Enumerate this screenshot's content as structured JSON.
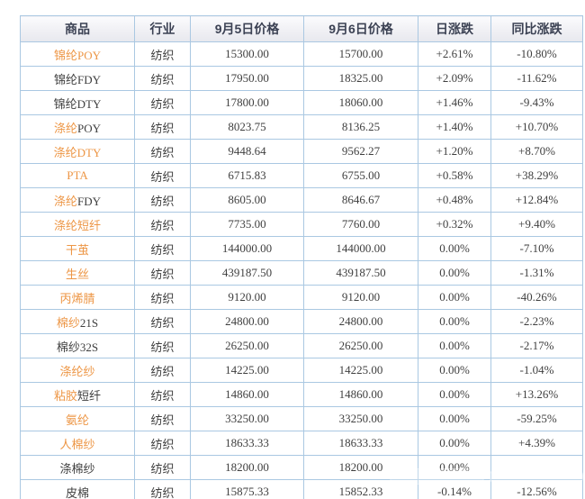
{
  "colors": {
    "border": "#aac8e2",
    "header_text": "#3c4254",
    "commodity_link_orange": "#ed9645",
    "text_dark": "#3f3f3f",
    "change_up_red": "#d23440",
    "change_down_green": "#21a121",
    "header_background": "#f0f0f4",
    "row_background": "#ffffff"
  },
  "table": {
    "columns": [
      {
        "key": "name",
        "label": "商品"
      },
      {
        "key": "industry",
        "label": "行业"
      },
      {
        "key": "price_sep5",
        "label": "9月5日价格"
      },
      {
        "key": "price_sep6",
        "label": "9月6日价格"
      },
      {
        "key": "daily_change",
        "label": "日涨跌"
      },
      {
        "key": "yoy_change",
        "label": "同比涨跌"
      }
    ],
    "rows": [
      {
        "name": [
          {
            "t": "锦纶POY",
            "c": "orange"
          }
        ],
        "industry": "纺织",
        "p5": "15300.00",
        "p6": "15700.00",
        "daily": {
          "t": "+2.61%",
          "c": "red"
        },
        "yoy": {
          "t": "-10.80%",
          "c": "green"
        }
      },
      {
        "name": [
          {
            "t": "锦纶FDY",
            "c": "dark"
          }
        ],
        "industry": "纺织",
        "p5": "17950.00",
        "p6": "18325.00",
        "daily": {
          "t": "+2.09%",
          "c": "red"
        },
        "yoy": {
          "t": "-11.62%",
          "c": "green"
        }
      },
      {
        "name": [
          {
            "t": "锦纶DTY",
            "c": "dark"
          }
        ],
        "industry": "纺织",
        "p5": "17800.00",
        "p6": "18060.00",
        "daily": {
          "t": "+1.46%",
          "c": "red"
        },
        "yoy": {
          "t": "-9.43%",
          "c": "green"
        }
      },
      {
        "name": [
          {
            "t": "涤纶",
            "c": "orange"
          },
          {
            "t": "POY",
            "c": "dark"
          }
        ],
        "industry": "纺织",
        "p5": "8023.75",
        "p6": "8136.25",
        "daily": {
          "t": "+1.40%",
          "c": "red"
        },
        "yoy": {
          "t": "+10.70%",
          "c": "red"
        }
      },
      {
        "name": [
          {
            "t": "涤纶DTY",
            "c": "orange"
          }
        ],
        "industry": "纺织",
        "p5": "9448.64",
        "p6": "9562.27",
        "daily": {
          "t": "+1.20%",
          "c": "red"
        },
        "yoy": {
          "t": "+8.70%",
          "c": "red"
        }
      },
      {
        "name": [
          {
            "t": "PTA",
            "c": "orange"
          }
        ],
        "industry": "纺织",
        "p5": "6715.83",
        "p6": "6755.00",
        "daily": {
          "t": "+0.58%",
          "c": "red"
        },
        "yoy": {
          "t": "+38.29%",
          "c": "red"
        }
      },
      {
        "name": [
          {
            "t": "涤纶",
            "c": "orange"
          },
          {
            "t": "FDY",
            "c": "dark"
          }
        ],
        "industry": "纺织",
        "p5": "8605.00",
        "p6": "8646.67",
        "daily": {
          "t": "+0.48%",
          "c": "red"
        },
        "yoy": {
          "t": "+12.84%",
          "c": "red"
        }
      },
      {
        "name": [
          {
            "t": "涤纶短纤",
            "c": "orange"
          }
        ],
        "industry": "纺织",
        "p5": "7735.00",
        "p6": "7760.00",
        "daily": {
          "t": "+0.32%",
          "c": "red"
        },
        "yoy": {
          "t": "+9.40%",
          "c": "red"
        }
      },
      {
        "name": [
          {
            "t": "干茧",
            "c": "orange"
          }
        ],
        "industry": "纺织",
        "p5": "144000.00",
        "p6": "144000.00",
        "daily": {
          "t": "0.00%",
          "c": "dark"
        },
        "yoy": {
          "t": "-7.10%",
          "c": "green"
        }
      },
      {
        "name": [
          {
            "t": "生丝",
            "c": "orange"
          }
        ],
        "industry": "纺织",
        "p5": "439187.50",
        "p6": "439187.50",
        "daily": {
          "t": "0.00%",
          "c": "dark"
        },
        "yoy": {
          "t": "-1.31%",
          "c": "green"
        }
      },
      {
        "name": [
          {
            "t": "丙烯腈",
            "c": "orange"
          }
        ],
        "industry": "纺织",
        "p5": "9120.00",
        "p6": "9120.00",
        "daily": {
          "t": "0.00%",
          "c": "dark"
        },
        "yoy": {
          "t": "-40.26%",
          "c": "green"
        }
      },
      {
        "name": [
          {
            "t": "棉纱",
            "c": "orange"
          },
          {
            "t": "21S",
            "c": "dark"
          }
        ],
        "industry": "纺织",
        "p5": "24800.00",
        "p6": "24800.00",
        "daily": {
          "t": "0.00%",
          "c": "dark"
        },
        "yoy": {
          "t": "-2.23%",
          "c": "green"
        }
      },
      {
        "name": [
          {
            "t": "棉纱32S",
            "c": "dark"
          }
        ],
        "industry": "纺织",
        "p5": "26250.00",
        "p6": "26250.00",
        "daily": {
          "t": "0.00%",
          "c": "dark"
        },
        "yoy": {
          "t": "-2.17%",
          "c": "green"
        }
      },
      {
        "name": [
          {
            "t": "涤纶纱",
            "c": "orange"
          }
        ],
        "industry": "纺织",
        "p5": "14225.00",
        "p6": "14225.00",
        "daily": {
          "t": "0.00%",
          "c": "dark"
        },
        "yoy": {
          "t": "-1.04%",
          "c": "green"
        }
      },
      {
        "name": [
          {
            "t": "粘胶",
            "c": "orange"
          },
          {
            "t": "短纤",
            "c": "dark"
          }
        ],
        "industry": "纺织",
        "p5": "14860.00",
        "p6": "14860.00",
        "daily": {
          "t": "0.00%",
          "c": "dark"
        },
        "yoy": {
          "t": "+13.26%",
          "c": "red"
        }
      },
      {
        "name": [
          {
            "t": "氨纶",
            "c": "orange"
          }
        ],
        "industry": "纺织",
        "p5": "33250.00",
        "p6": "33250.00",
        "daily": {
          "t": "0.00%",
          "c": "dark"
        },
        "yoy": {
          "t": "-59.25%",
          "c": "green"
        }
      },
      {
        "name": [
          {
            "t": "人棉纱",
            "c": "orange"
          }
        ],
        "industry": "纺织",
        "p5": "18633.33",
        "p6": "18633.33",
        "daily": {
          "t": "0.00%",
          "c": "dark"
        },
        "yoy": {
          "t": "+4.39%",
          "c": "red"
        }
      },
      {
        "name": [
          {
            "t": "涤棉纱",
            "c": "dark"
          }
        ],
        "industry": "纺织",
        "p5": "18200.00",
        "p6": "18200.00",
        "daily": {
          "t": "0.00%",
          "c": "dark"
        },
        "yoy": {
          "t": "",
          "c": "dark"
        }
      },
      {
        "name": [
          {
            "t": "皮棉",
            "c": "dark"
          }
        ],
        "industry": "纺织",
        "p5": "15875.33",
        "p6": "15852.33",
        "daily": {
          "t": "-0.14%",
          "c": "green"
        },
        "yoy": {
          "t": "-12.56%",
          "c": "green"
        }
      }
    ]
  },
  "chart_data": {
    "type": "table",
    "title": "",
    "columns": [
      "商品",
      "行业",
      "9月5日价格",
      "9月6日价格",
      "日涨跌",
      "同比涨跌"
    ],
    "rows": [
      [
        "锦纶POY",
        "纺织",
        "15300.00",
        "15700.00",
        "+2.61%",
        "-10.80%"
      ],
      [
        "锦纶FDY",
        "纺织",
        "17950.00",
        "18325.00",
        "+2.09%",
        "-11.62%"
      ],
      [
        "锦纶DTY",
        "纺织",
        "17800.00",
        "18060.00",
        "+1.46%",
        "-9.43%"
      ],
      [
        "涤纶POY",
        "纺织",
        "8023.75",
        "8136.25",
        "+1.40%",
        "+10.70%"
      ],
      [
        "涤纶DTY",
        "纺织",
        "9448.64",
        "9562.27",
        "+1.20%",
        "+8.70%"
      ],
      [
        "PTA",
        "纺织",
        "6715.83",
        "6755.00",
        "+0.58%",
        "+38.29%"
      ],
      [
        "涤纶FDY",
        "纺织",
        "8605.00",
        "8646.67",
        "+0.48%",
        "+12.84%"
      ],
      [
        "涤纶短纤",
        "纺织",
        "7735.00",
        "7760.00",
        "+0.32%",
        "+9.40%"
      ],
      [
        "干茧",
        "纺织",
        "144000.00",
        "144000.00",
        "0.00%",
        "-7.10%"
      ],
      [
        "生丝",
        "纺织",
        "439187.50",
        "439187.50",
        "0.00%",
        "-1.31%"
      ],
      [
        "丙烯腈",
        "纺织",
        "9120.00",
        "9120.00",
        "0.00%",
        "-40.26%"
      ],
      [
        "棉纱21S",
        "纺织",
        "24800.00",
        "24800.00",
        "0.00%",
        "-2.23%"
      ],
      [
        "棉纱32S",
        "纺织",
        "26250.00",
        "26250.00",
        "0.00%",
        "-2.17%"
      ],
      [
        "涤纶纱",
        "纺织",
        "14225.00",
        "14225.00",
        "0.00%",
        "-1.04%"
      ],
      [
        "粘胶短纤",
        "纺织",
        "14860.00",
        "14860.00",
        "0.00%",
        "+13.26%"
      ],
      [
        "氨纶",
        "纺织",
        "33250.00",
        "33250.00",
        "0.00%",
        "-59.25%"
      ],
      [
        "人棉纱",
        "纺织",
        "18633.33",
        "18633.33",
        "0.00%",
        "+4.39%"
      ],
      [
        "涤棉纱",
        "纺织",
        "18200.00",
        "18200.00",
        "0.00%",
        ""
      ],
      [
        "皮棉",
        "纺织",
        "15875.33",
        "15852.33",
        "-0.14%",
        "-12.56%"
      ]
    ]
  }
}
